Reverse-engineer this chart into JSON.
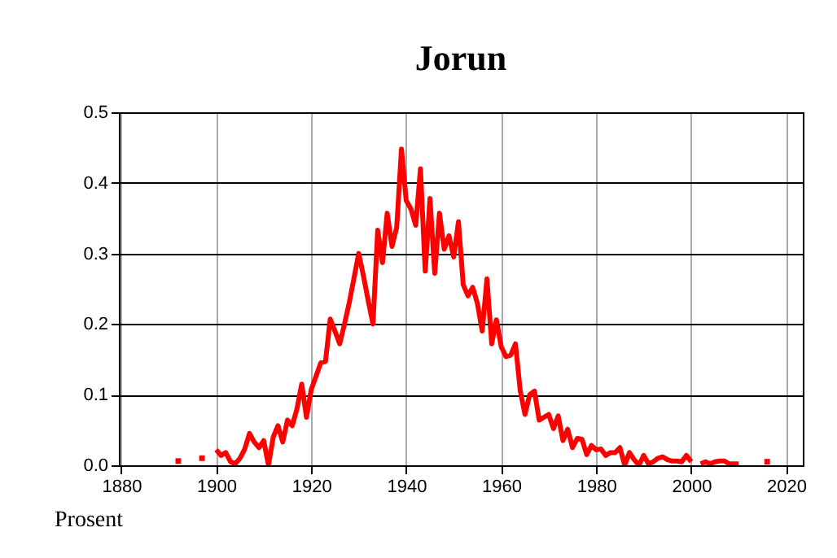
{
  "chart_data": {
    "type": "line",
    "title": "Jorun",
    "ylabel": "Prosent",
    "x": [
      1892,
      1893,
      1897,
      1898,
      1900,
      1901,
      1902,
      1903,
      1904,
      1905,
      1906,
      1907,
      1908,
      1909,
      1910,
      1911,
      1912,
      1913,
      1914,
      1915,
      1916,
      1917,
      1918,
      1919,
      1920,
      1921,
      1922,
      1923,
      1924,
      1925,
      1926,
      1927,
      1928,
      1929,
      1930,
      1931,
      1932,
      1933,
      1934,
      1935,
      1936,
      1937,
      1938,
      1939,
      1940,
      1941,
      1942,
      1943,
      1944,
      1945,
      1946,
      1947,
      1948,
      1949,
      1950,
      1951,
      1952,
      1953,
      1954,
      1955,
      1956,
      1957,
      1958,
      1959,
      1960,
      1961,
      1962,
      1963,
      1964,
      1965,
      1966,
      1967,
      1968,
      1969,
      1970,
      1971,
      1972,
      1973,
      1974,
      1975,
      1976,
      1977,
      1978,
      1979,
      1980,
      1981,
      1982,
      1983,
      1984,
      1985,
      1986,
      1987,
      1988,
      1989,
      1990,
      1991,
      1992,
      1993,
      1994,
      1995,
      1996,
      1997,
      1998,
      1999,
      2000,
      2001,
      2002,
      2003,
      2004,
      2005,
      2006,
      2007,
      2008,
      2009,
      2010,
      2011,
      2016
    ],
    "series": [
      {
        "color": "#ff0000",
        "values": [
          0.006,
          null,
          0.01,
          null,
          0.022,
          0.014,
          0.018,
          0.005,
          0.002,
          0.01,
          0.023,
          0.045,
          0.033,
          0.025,
          0.035,
          0.0,
          0.04,
          0.056,
          0.033,
          0.064,
          0.056,
          0.08,
          0.115,
          0.068,
          0.107,
          0.126,
          0.145,
          0.147,
          0.207,
          0.19,
          0.172,
          0.2,
          0.23,
          0.265,
          0.3,
          0.268,
          0.233,
          0.2,
          0.333,
          0.287,
          0.357,
          0.31,
          0.337,
          0.448,
          0.375,
          0.363,
          0.34,
          0.42,
          0.275,
          0.378,
          0.272,
          0.357,
          0.306,
          0.325,
          0.295,
          0.345,
          0.256,
          0.24,
          0.252,
          0.229,
          0.19,
          0.264,
          0.172,
          0.206,
          0.168,
          0.154,
          0.156,
          0.172,
          0.106,
          0.072,
          0.1,
          0.105,
          0.064,
          0.068,
          0.072,
          0.052,
          0.07,
          0.035,
          0.051,
          0.025,
          0.038,
          0.037,
          0.015,
          0.028,
          0.022,
          0.023,
          0.014,
          0.018,
          0.018,
          0.025,
          0.0,
          0.018,
          0.008,
          0.0,
          0.014,
          0.002,
          0.005,
          0.01,
          0.012,
          0.008,
          0.006,
          0.006,
          0.005,
          0.014,
          0.005,
          null,
          0.002,
          0.005,
          0.002,
          0.005,
          0.006,
          0.006,
          0.002,
          0.002,
          0.002,
          null,
          0.005
        ]
      }
    ],
    "xlim": [
      1879.5,
      2023.5
    ],
    "xticks": [
      1880,
      1900,
      1920,
      1940,
      1960,
      1980,
      2000,
      2020
    ],
    "ylim": [
      0,
      0.5
    ],
    "yticks": [
      {
        "value": 0,
        "label": "0.0"
      },
      0.1,
      0.2,
      0.3,
      0.4,
      0.5
    ],
    "grid": true,
    "marker": "none",
    "line_style": "solid"
  }
}
